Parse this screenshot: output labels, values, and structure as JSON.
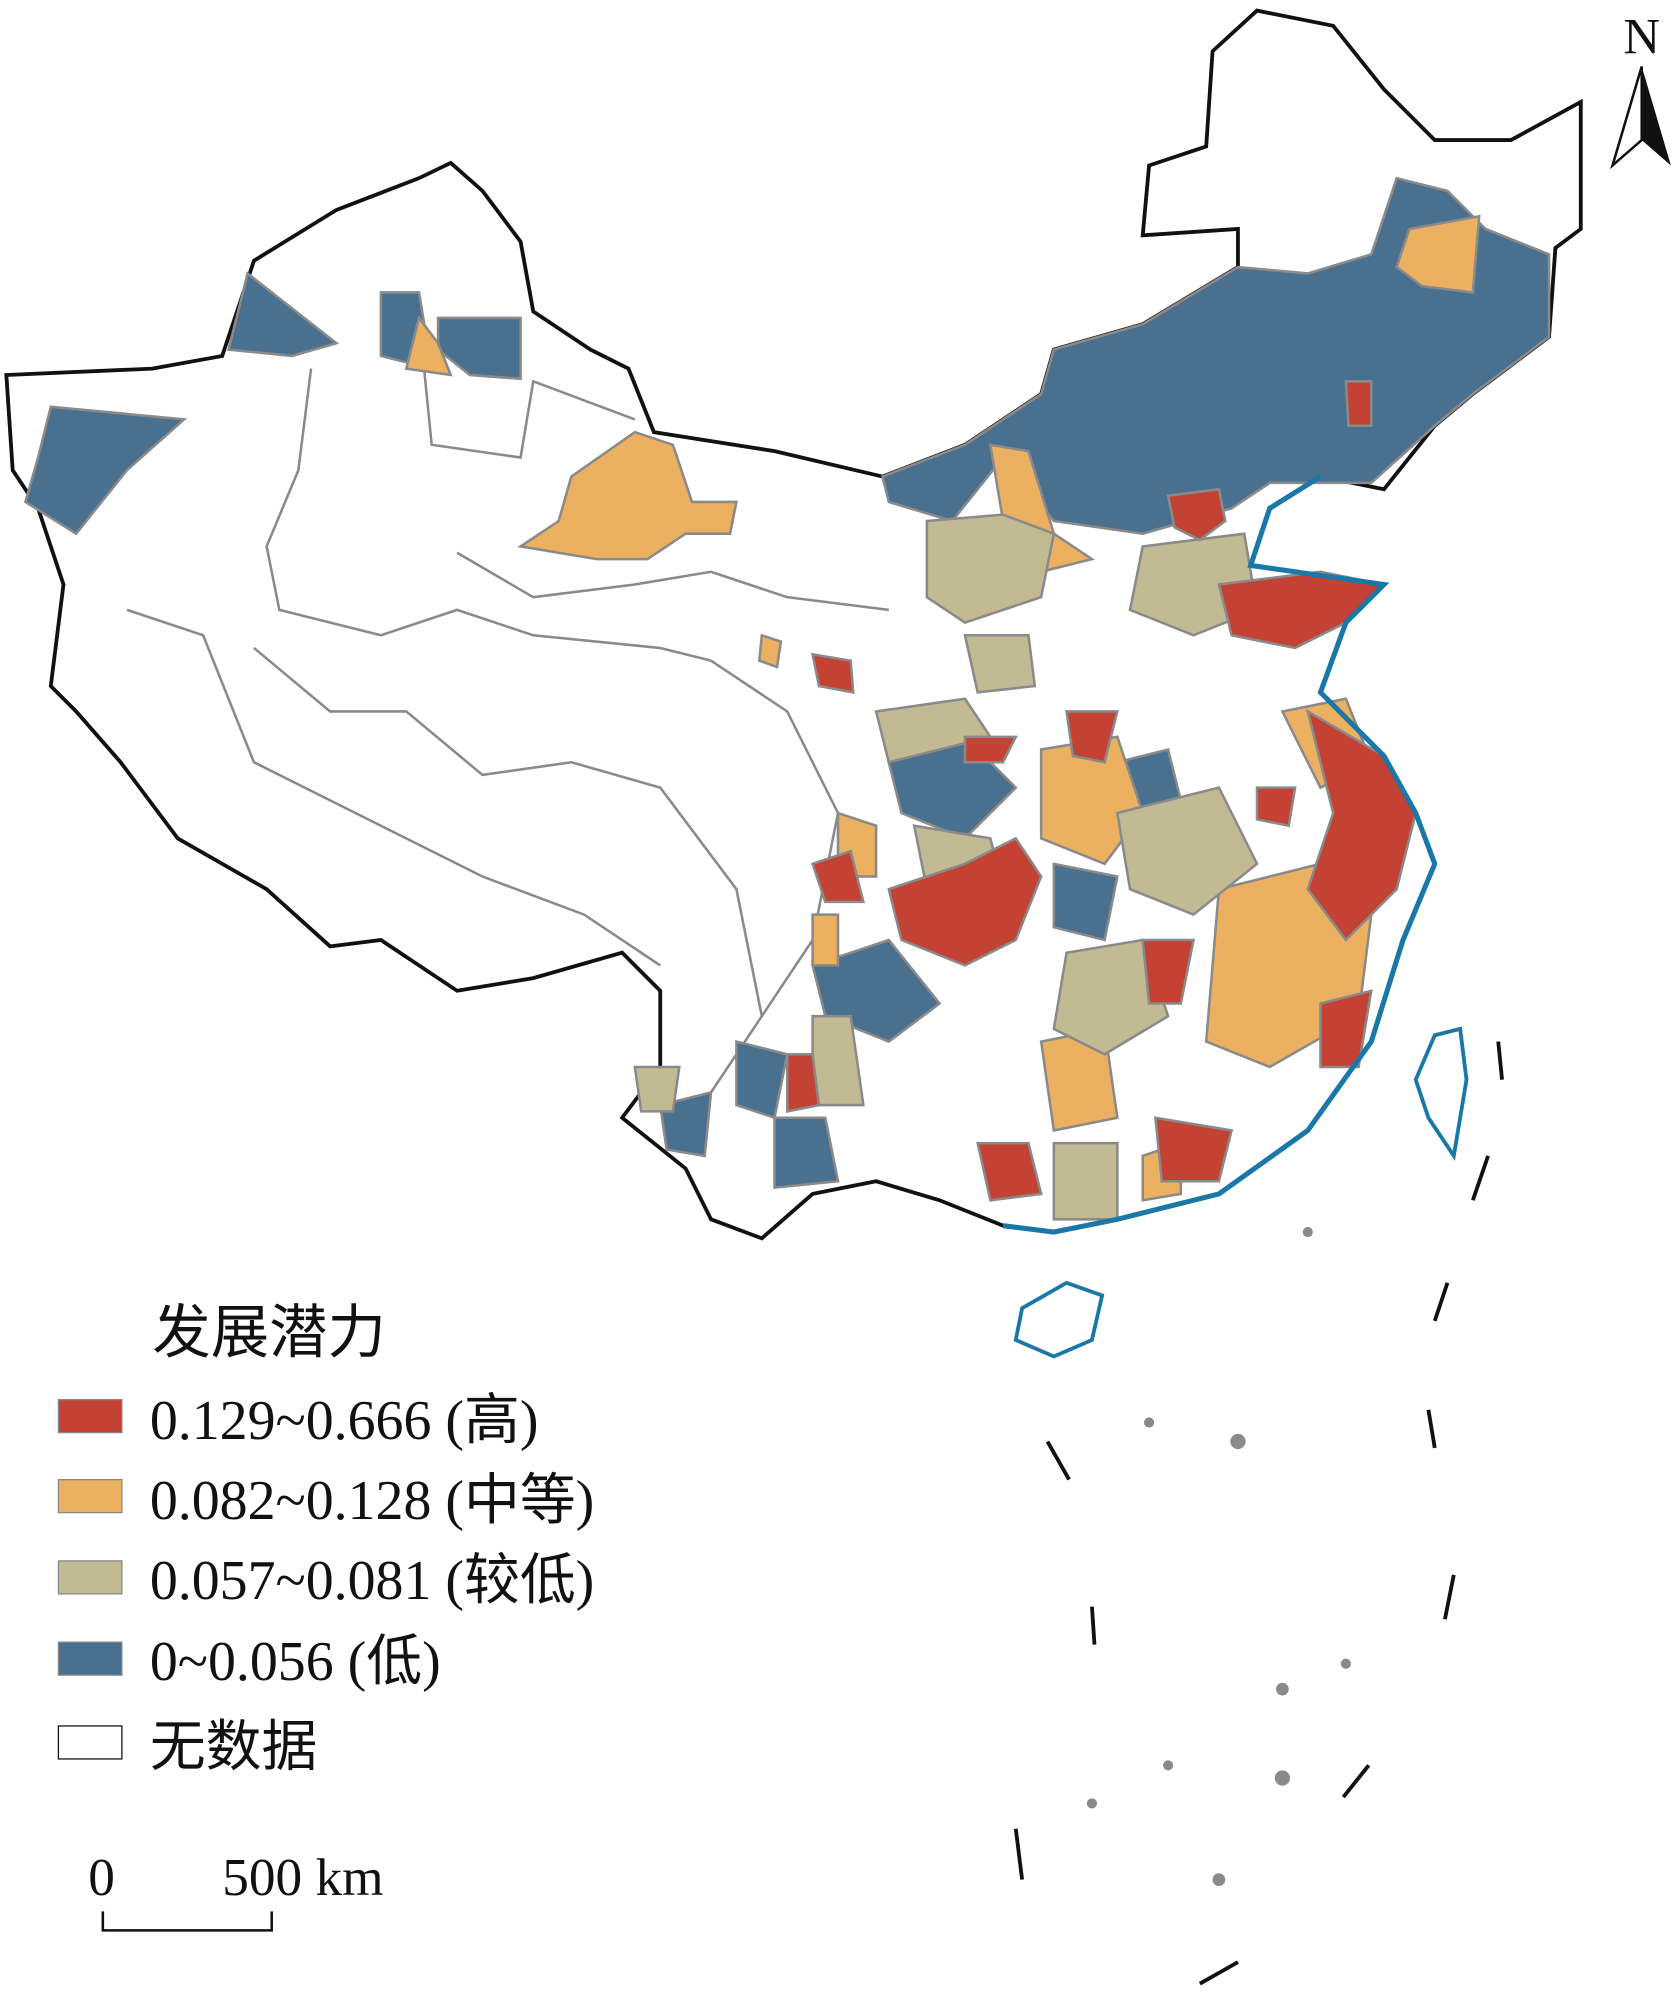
{
  "legend": {
    "title": "发展潜力",
    "items": [
      {
        "label": "0.129~0.666 (高)",
        "color": "#c44233"
      },
      {
        "label": "0.082~0.128 (中等)",
        "color": "#ebb060"
      },
      {
        "label": "0.057~0.081 (较低)",
        "color": "#c2ba92"
      },
      {
        "label": "0~0.056 (低)",
        "color": "#4a7090"
      },
      {
        "label": "无数据",
        "color": "#ffffff"
      }
    ]
  },
  "scale_bar": {
    "start": "0",
    "end": "500 km"
  },
  "north_arrow": {
    "label": "N"
  },
  "colors": {
    "boundary": "#111111",
    "internal_boundary": "#8a8a8a",
    "coastline": "#1a78a8"
  }
}
